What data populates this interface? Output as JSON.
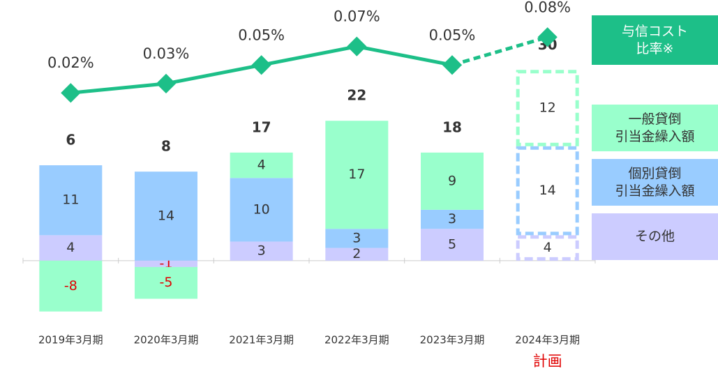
{
  "chart_data": {
    "type": "bar",
    "categories": [
      "2019年3月期",
      "2020年3月期",
      "2021年3月期",
      "2022年3月期",
      "2023年3月期",
      "2024年3月期"
    ],
    "series": [
      {
        "name": "その他",
        "color": "#ccccff",
        "values": [
          4,
          -1,
          3,
          2,
          5,
          4
        ]
      },
      {
        "name": "個別貸倒\n引当金繰入額",
        "color": "#99ccff",
        "values": [
          11,
          14,
          10,
          3,
          3,
          14
        ]
      },
      {
        "name": "一般貸倒\n引当金繰入額",
        "color": "#99ffcc",
        "values": [
          -8,
          -5,
          4,
          17,
          9,
          12
        ]
      }
    ],
    "totals": [
      6,
      8,
      17,
      22,
      18,
      30
    ],
    "line": {
      "type": "line",
      "name": "与信コスト\n比率※",
      "color": "#1dbf88",
      "axis": "y2",
      "values": [
        0.02,
        0.03,
        0.05,
        0.07,
        0.05,
        0.08
      ],
      "value_labels": [
        "0.02%",
        "0.03%",
        "0.05%",
        "0.07%",
        "0.05%",
        "0.08%"
      ]
    },
    "plan_label": "計画",
    "ylim": [
      -10,
      41
    ],
    "y2lim": [
      -0.229,
      0.12
    ]
  }
}
